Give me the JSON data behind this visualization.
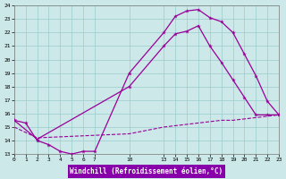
{
  "bg_color": "#cce8e8",
  "line_color": "#990099",
  "grid_color": "#99cccc",
  "xlabel": "Windchill (Refroidissement éolien,°C)",
  "xlabel_bg": "#8800aa",
  "xlabel_fg": "#ffffff",
  "ylim": [
    13,
    24
  ],
  "xlim": [
    0,
    23
  ],
  "ytick_vals": [
    13,
    14,
    15,
    16,
    17,
    18,
    19,
    20,
    21,
    22,
    23,
    24
  ],
  "xtick_vals": [
    0,
    1,
    2,
    3,
    4,
    5,
    6,
    7,
    10,
    13,
    14,
    15,
    16,
    17,
    18,
    19,
    20,
    21,
    22,
    23
  ],
  "line1_x": [
    0,
    1,
    2,
    3,
    4,
    5,
    6,
    7,
    10,
    13,
    14,
    15,
    16,
    17,
    18,
    19,
    20,
    21,
    22,
    23
  ],
  "line1_y": [
    15.5,
    15.3,
    14.0,
    13.7,
    13.2,
    13.0,
    13.2,
    13.2,
    19.0,
    22.0,
    23.2,
    23.6,
    23.7,
    23.1,
    22.8,
    22.0,
    20.4,
    18.8,
    16.9,
    15.9
  ],
  "line2_x": [
    0,
    2,
    10,
    13,
    14,
    15,
    16,
    17,
    18,
    19,
    20,
    21,
    22,
    23
  ],
  "line2_y": [
    15.5,
    14.1,
    18.0,
    21.0,
    21.9,
    22.1,
    22.5,
    21.0,
    19.8,
    18.5,
    17.2,
    15.9,
    15.9,
    15.9
  ],
  "line3_x": [
    0,
    2,
    10,
    13,
    14,
    15,
    16,
    17,
    18,
    19,
    20,
    21,
    22,
    23
  ],
  "line3_y": [
    15.0,
    14.2,
    14.5,
    15.0,
    15.1,
    15.2,
    15.3,
    15.4,
    15.5,
    15.5,
    15.6,
    15.7,
    15.8,
    15.9
  ]
}
